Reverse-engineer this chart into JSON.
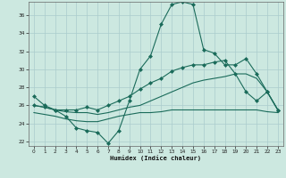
{
  "background_color": "#cce8e0",
  "grid_color": "#aacccc",
  "line_color": "#1a6b5a",
  "xlabel": "Humidex (Indice chaleur)",
  "xlim": [
    -0.5,
    23.5
  ],
  "ylim": [
    21.5,
    37.5
  ],
  "yticks": [
    22,
    24,
    26,
    28,
    30,
    32,
    34,
    36
  ],
  "xticks": [
    0,
    1,
    2,
    3,
    4,
    5,
    6,
    7,
    8,
    9,
    10,
    11,
    12,
    13,
    14,
    15,
    16,
    17,
    18,
    19,
    20,
    21,
    22,
    23
  ],
  "line1_x": [
    0,
    1,
    2,
    3,
    4,
    5,
    6,
    7,
    8,
    9,
    10,
    11,
    12,
    13,
    14,
    15,
    16,
    17,
    18,
    19,
    20,
    21,
    22,
    23
  ],
  "line1_y": [
    27.0,
    26.0,
    25.5,
    24.8,
    23.5,
    23.2,
    23.0,
    21.8,
    23.2,
    26.5,
    30.0,
    31.5,
    35.0,
    37.2,
    37.5,
    37.2,
    32.2,
    31.8,
    30.5,
    30.5,
    31.2,
    29.5,
    27.5,
    25.5
  ],
  "line2_x": [
    0,
    1,
    2,
    3,
    4,
    5,
    6,
    7,
    8,
    9,
    10,
    11,
    12,
    13,
    14,
    15,
    16,
    17,
    18,
    19,
    20,
    21,
    22,
    23
  ],
  "line2_y": [
    26.0,
    25.8,
    25.5,
    25.5,
    25.5,
    25.8,
    25.5,
    26.0,
    26.5,
    27.0,
    27.8,
    28.5,
    29.0,
    29.8,
    30.2,
    30.5,
    30.5,
    30.8,
    31.0,
    29.5,
    27.5,
    26.5,
    27.5,
    25.5
  ],
  "line3_x": [
    0,
    1,
    2,
    3,
    4,
    5,
    6,
    7,
    8,
    9,
    10,
    11,
    12,
    13,
    14,
    15,
    16,
    17,
    18,
    19,
    20,
    21,
    22,
    23
  ],
  "line3_y": [
    26.0,
    25.8,
    25.5,
    25.3,
    25.2,
    25.2,
    25.0,
    25.2,
    25.5,
    25.8,
    26.0,
    26.5,
    27.0,
    27.5,
    28.0,
    28.5,
    28.8,
    29.0,
    29.2,
    29.5,
    29.5,
    29.0,
    27.5,
    25.5
  ],
  "line4_x": [
    0,
    1,
    2,
    3,
    4,
    5,
    6,
    7,
    8,
    9,
    10,
    11,
    12,
    13,
    14,
    15,
    16,
    17,
    18,
    19,
    20,
    21,
    22,
    23
  ],
  "line4_y": [
    25.2,
    25.0,
    24.8,
    24.5,
    24.3,
    24.2,
    24.2,
    24.5,
    24.8,
    25.0,
    25.2,
    25.2,
    25.3,
    25.5,
    25.5,
    25.5,
    25.5,
    25.5,
    25.5,
    25.5,
    25.5,
    25.5,
    25.3,
    25.2
  ]
}
